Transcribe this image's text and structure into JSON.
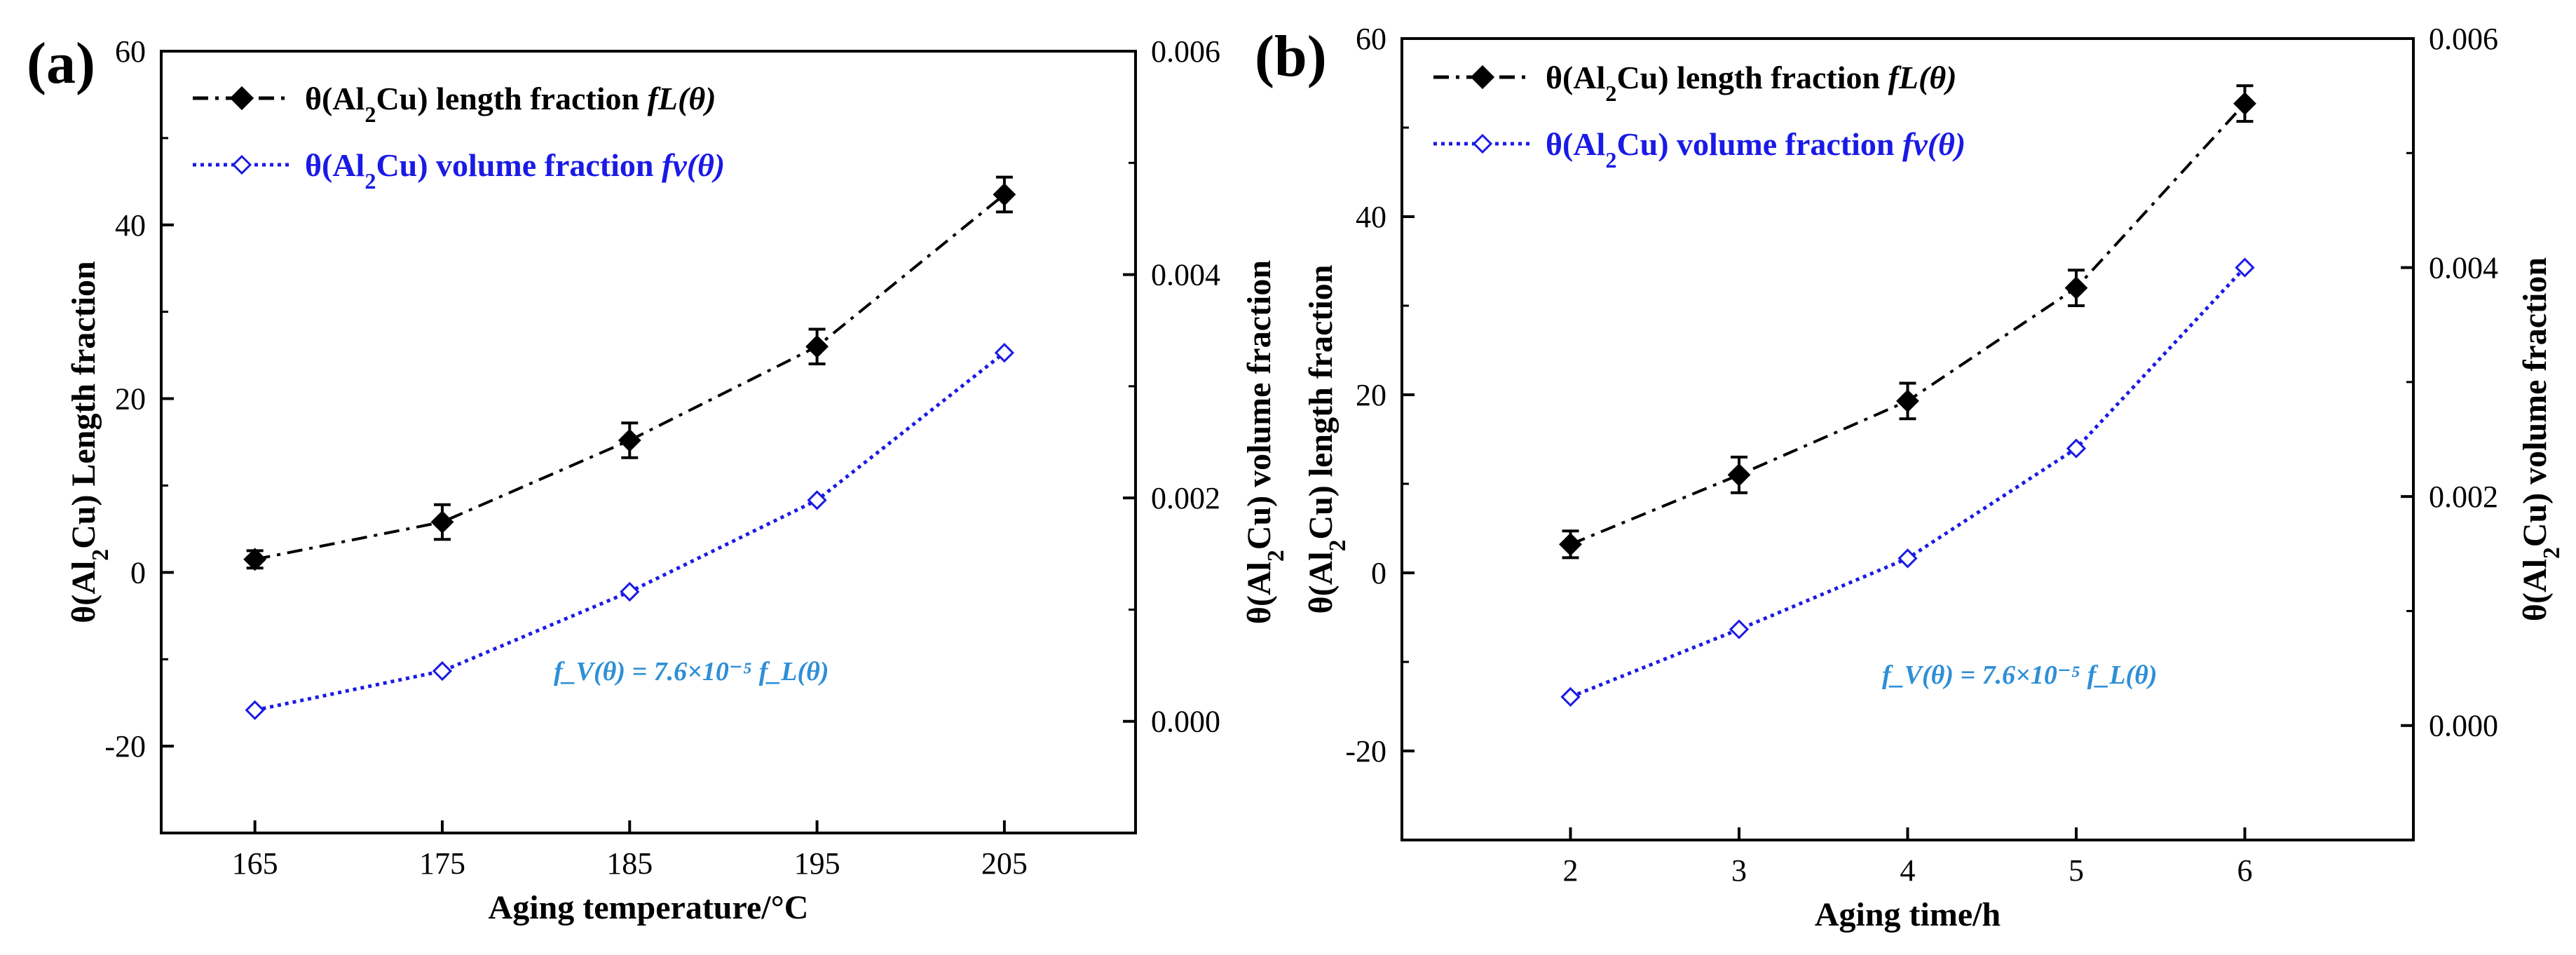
{
  "chart_data": [
    {
      "type": "line",
      "panel_label": "(a)",
      "xlabel": "Aging temperature/°C",
      "ylabel": "θ(Al₂Cu) Length fraction",
      "y2label": "θ(Al₂Cu) volume fraction",
      "x": [
        165,
        175,
        185,
        195,
        205
      ],
      "xticks": [
        "165",
        "175",
        "185",
        "195",
        "205"
      ],
      "xlim": [
        160,
        212
      ],
      "ylim": [
        -30,
        60
      ],
      "yticks": [
        "-20",
        "0",
        "20",
        "40",
        "60"
      ],
      "y2lim": [
        -0.001,
        0.006
      ],
      "y2ticks": [
        "0.000",
        "0.002",
        "0.004",
        "0.006"
      ],
      "series": [
        {
          "name": "θ(Al₂Cu) length fraction fL(θ)",
          "axis": "left",
          "marker": "filled-diamond",
          "line": "dash-dot",
          "color": "#000000",
          "values": [
            1.5,
            5.8,
            15.2,
            26.0,
            43.5
          ],
          "errors": [
            1.0,
            2.0,
            2.0,
            2.0,
            2.0
          ]
        },
        {
          "name": "θ(Al₂Cu) volume fraction fv(θ)",
          "axis": "right",
          "marker": "open-diamond",
          "line": "dotted",
          "color": "#1a1ae6",
          "values": [
            0.0001,
            0.00045,
            0.00116,
            0.00198,
            0.0033
          ]
        }
      ],
      "legend": "top-left",
      "annotation": "f_V(θ) = 7.6×10⁻⁵ f_L(θ)"
    },
    {
      "type": "line",
      "panel_label": "(b)",
      "xlabel": "Aging time/h",
      "ylabel": "θ(Al₂Cu) length fraction",
      "y2label": "θ(Al₂Cu) volume fraction",
      "x": [
        2,
        3,
        4,
        5,
        6
      ],
      "xticks": [
        "2",
        "3",
        "4",
        "5",
        "6"
      ],
      "xlim": [
        1,
        7
      ],
      "ylim": [
        -30,
        60
      ],
      "yticks": [
        "-20",
        "0",
        "20",
        "40",
        "60"
      ],
      "y2lim": [
        -0.001,
        0.006
      ],
      "y2ticks": [
        "0.000",
        "0.002",
        "0.004",
        "0.006"
      ],
      "series": [
        {
          "name": "θ(Al₂Cu) length fraction fL(θ)",
          "axis": "left",
          "marker": "filled-diamond",
          "line": "dash-dot",
          "color": "#000000",
          "values": [
            3.2,
            11.0,
            19.3,
            32.0,
            52.7
          ],
          "errors": [
            1.5,
            2.0,
            2.0,
            2.0,
            2.0
          ]
        },
        {
          "name": "θ(Al₂Cu) volume fraction fv(θ)",
          "axis": "right",
          "marker": "open-diamond",
          "line": "dotted",
          "color": "#1a1ae6",
          "values": [
            0.00025,
            0.00084,
            0.00146,
            0.00242,
            0.004
          ]
        }
      ],
      "legend": "top-left",
      "annotation": "f_V(θ) = 7.6×10⁻⁵ f_L(θ)"
    }
  ]
}
